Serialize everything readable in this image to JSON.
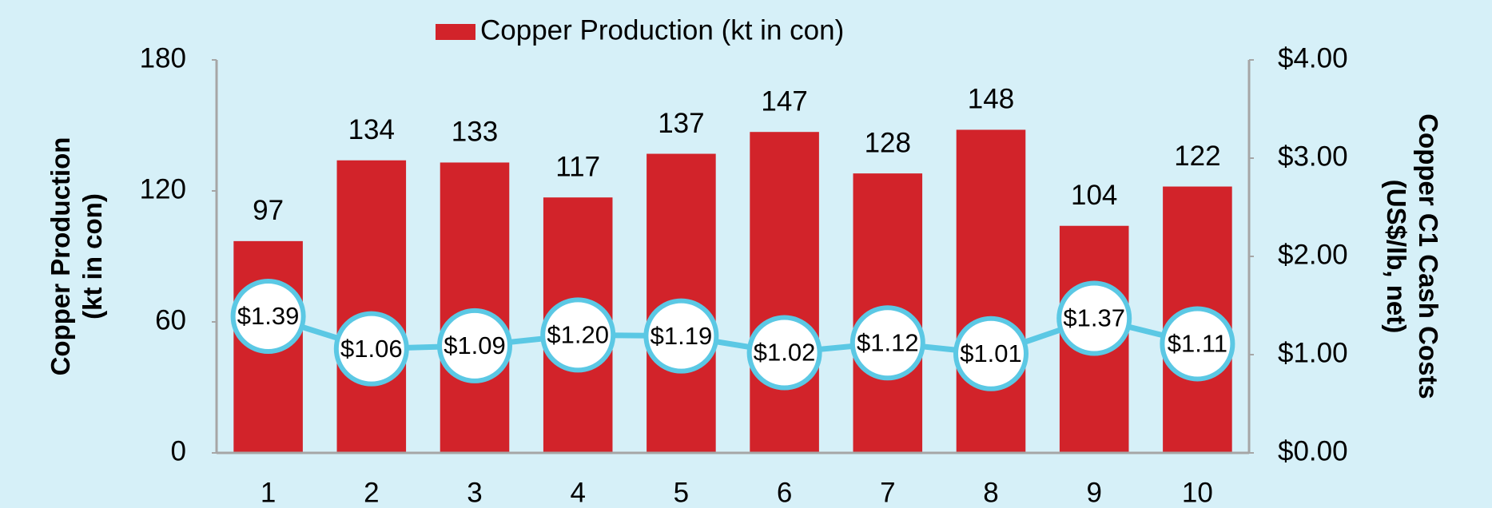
{
  "chart_data": {
    "type": "bar",
    "categories": [
      "1",
      "2",
      "3",
      "4",
      "5",
      "6",
      "7",
      "8",
      "9",
      "10"
    ],
    "series": [
      {
        "name": "Copper Production (kt in con)",
        "color": "#d2232a",
        "type": "bar",
        "values": [
          97,
          134,
          133,
          117,
          137,
          147,
          128,
          148,
          104,
          122
        ]
      },
      {
        "color": "#5bc8e4",
        "type": "line",
        "axis": "y2",
        "values": [
          1.39,
          1.06,
          1.09,
          1.2,
          1.19,
          1.02,
          1.12,
          1.01,
          1.37,
          1.11
        ],
        "value_labels": [
          "$1.39",
          "$1.06",
          "$1.09",
          "$1.20",
          "$1.19",
          "$1.02",
          "$1.12",
          "$1.01",
          "$1.37",
          "$1.11"
        ]
      }
    ],
    "ylabel": "Copper Production\n(kt in con)",
    "y2label": "Copper C1 Cash Costs\n(US$/lb, net)",
    "ylim": [
      0,
      180
    ],
    "yticks": [
      0,
      60,
      120,
      180
    ],
    "y2lim": [
      0,
      4
    ],
    "y2ticks": [
      {
        "value": 0,
        "label": "$0.00"
      },
      {
        "value": 1,
        "label": "$1.00"
      },
      {
        "value": 2,
        "label": "$2.00"
      },
      {
        "value": 3,
        "label": "$3.00"
      },
      {
        "value": 4,
        "label": "$4.00"
      }
    ],
    "grid": false,
    "legend": "top"
  }
}
